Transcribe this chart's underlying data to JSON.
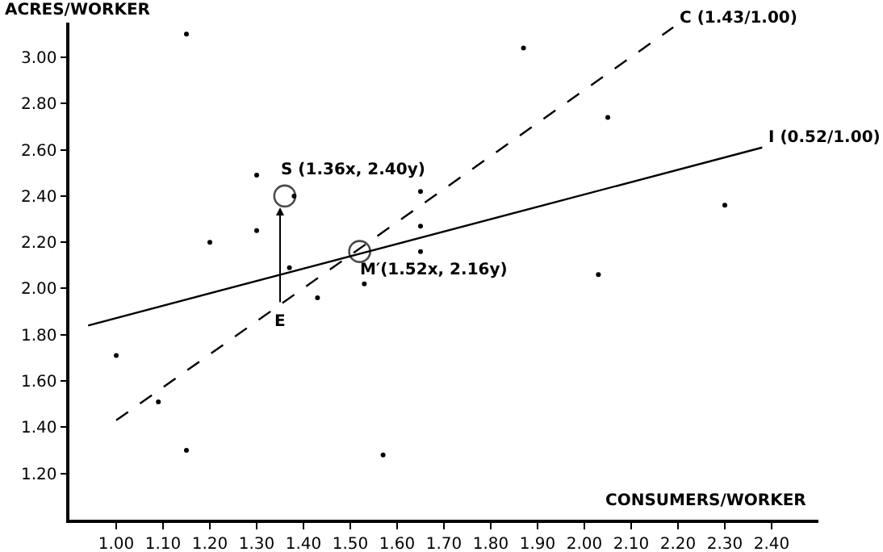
{
  "chart_data": {
    "type": "scatter",
    "xlabel": "CONSUMERS/WORKER",
    "ylabel": "ACRES/WORKER",
    "xlim": [
      0.9,
      2.5
    ],
    "ylim": [
      1.0,
      3.15
    ],
    "xticks": [
      {
        "value": 1.0,
        "label": "1.00"
      },
      {
        "value": 1.1,
        "label": "1.10"
      },
      {
        "value": 1.2,
        "label": "1.20"
      },
      {
        "value": 1.3,
        "label": "1.30"
      },
      {
        "value": 1.4,
        "label": "1.40"
      },
      {
        "value": 1.5,
        "label": "1.50"
      },
      {
        "value": 1.6,
        "label": "1.60"
      },
      {
        "value": 1.7,
        "label": "1.70"
      },
      {
        "value": 1.8,
        "label": "1.80"
      },
      {
        "value": 1.9,
        "label": "1.90"
      },
      {
        "value": 2.0,
        "label": "2.00"
      },
      {
        "value": 2.1,
        "label": "2.10"
      },
      {
        "value": 2.2,
        "label": "2.20"
      },
      {
        "value": 2.3,
        "label": "2.30"
      },
      {
        "value": 2.4,
        "label": "2.40"
      }
    ],
    "yticks": [
      {
        "value": 1.2,
        "label": "1.20"
      },
      {
        "value": 1.4,
        "label": "1.40"
      },
      {
        "value": 1.6,
        "label": "1.60"
      },
      {
        "value": 1.8,
        "label": "1.80"
      },
      {
        "value": 2.0,
        "label": "2.00"
      },
      {
        "value": 2.2,
        "label": "2.20"
      },
      {
        "value": 2.4,
        "label": "2.40"
      },
      {
        "value": 2.6,
        "label": "2.60"
      },
      {
        "value": 2.8,
        "label": "2.80"
      },
      {
        "value": 3.0,
        "label": "3.00"
      }
    ],
    "grid": false,
    "legend": false,
    "series": [
      {
        "color": "#000000",
        "marker": "circle",
        "x": [
          1.15,
          1.3,
          1.38,
          1.2,
          1.3,
          1.65,
          1.65,
          1.65,
          1.37,
          1.53,
          1.43,
          1.0,
          1.09,
          1.15,
          1.57,
          1.87,
          2.05,
          2.3,
          2.03
        ],
        "values": [
          3.1,
          2.49,
          2.4,
          2.2,
          2.25,
          2.42,
          2.27,
          2.16,
          2.09,
          2.02,
          1.96,
          1.71,
          1.51,
          1.3,
          1.28,
          3.04,
          2.74,
          2.36,
          2.06
        ]
      },
      {
        "type": "line",
        "color": "#000000",
        "marker": "none",
        "line_style": "solid",
        "x": [
          0.94,
          2.38
        ],
        "values": [
          1.84,
          2.61
        ]
      },
      {
        "type": "line",
        "color": "#000000",
        "marker": "none",
        "line_style": "dashed",
        "x": [
          1.0,
          2.19
        ],
        "values": [
          1.43,
          3.13
        ]
      },
      {
        "type": "bubble",
        "color": "#ffffff",
        "x": [
          1.36,
          1.52
        ],
        "values": [
          2.4,
          2.16
        ],
        "sizes": [
          1,
          1
        ]
      }
    ],
    "annotations": [
      {
        "text": "S (1.36x, 2.40y)",
        "x": 1.36,
        "y": 2.4
      },
      {
        "text": "M′(1.52x, 2.16y)",
        "x": 1.52,
        "y": 2.16
      },
      {
        "text": "E",
        "x": 1.35,
        "y": 1.93
      },
      {
        "text": "C (1.43/1.00)",
        "x": 2.19,
        "y": 3.13
      },
      {
        "text": "I (0.52/1.00)",
        "x": 2.38,
        "y": 2.61
      }
    ]
  }
}
